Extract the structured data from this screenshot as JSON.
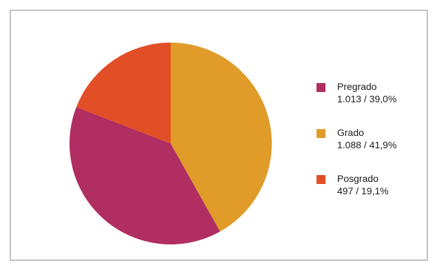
{
  "chart_data": {
    "type": "pie",
    "title": "",
    "legend_position": "right",
    "slices": [
      {
        "name": "Pregrado",
        "value": 1013,
        "value_label": "1.013 / 39,0%",
        "percent": 39.0,
        "color": "#b02e62"
      },
      {
        "name": "Grado",
        "value": 1088,
        "value_label": "1.088 / 41,9%",
        "percent": 41.9,
        "color": "#e09b28"
      },
      {
        "name": "Posgrado",
        "value": 497,
        "value_label": "497 / 19,1%",
        "percent": 19.1,
        "color": "#e24e25"
      }
    ]
  }
}
